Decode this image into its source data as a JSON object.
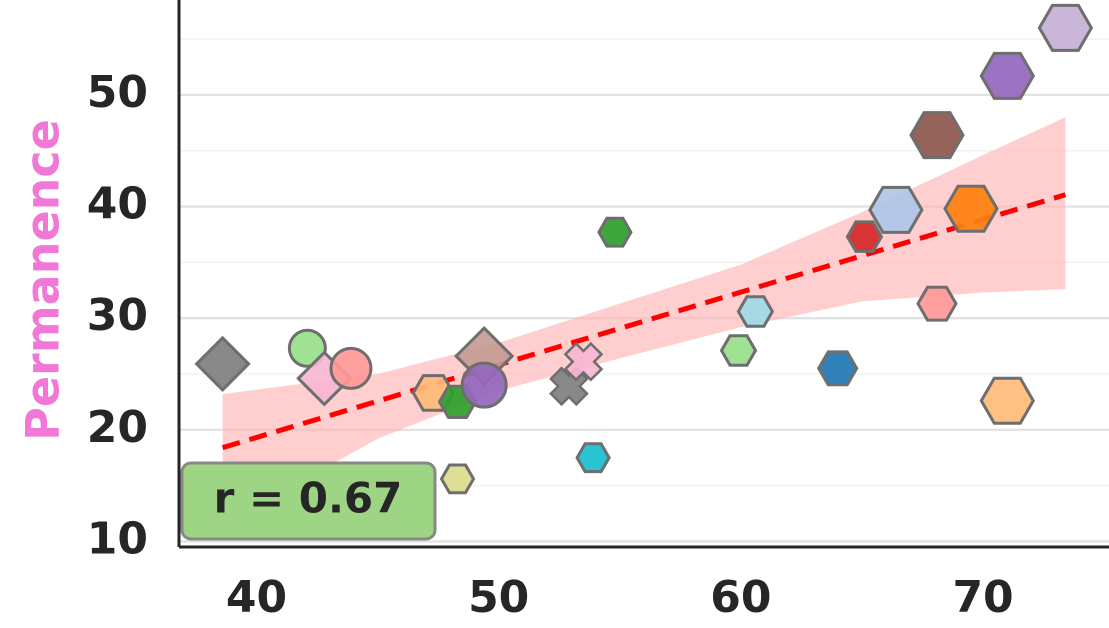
{
  "chart_data": {
    "type": "scatter",
    "title": "",
    "xlabel": "",
    "ylabel": "Permanence",
    "ylabel_color": "#f178d6",
    "xlim": [
      36.8,
      75.2
    ],
    "ylim": [
      9.5,
      58.5
    ],
    "x_ticks": [
      40,
      50,
      60,
      70
    ],
    "y_ticks": [
      10,
      20,
      30,
      40,
      50
    ],
    "grid": true,
    "annotation": "r = 0.67",
    "annotation_bg": "#9ed584",
    "regression": {
      "slope": 0.651,
      "intercept": -6.73,
      "x_range": [
        38.6,
        73.4
      ],
      "line_color": "#ff0000",
      "band_color": "#ffb6b6",
      "band_upper": [
        [
          38.6,
          23.2
        ],
        [
          45,
          25.0
        ],
        [
          50,
          27.8
        ],
        [
          55,
          31.3
        ],
        [
          60,
          34.8
        ],
        [
          65,
          39.5
        ],
        [
          70,
          44.6
        ],
        [
          73.4,
          48.0
        ]
      ],
      "band_lower": [
        [
          38.6,
          11.5
        ],
        [
          45,
          19.2
        ],
        [
          50,
          23.5
        ],
        [
          55,
          26.4
        ],
        [
          60,
          29.2
        ],
        [
          65,
          31.5
        ],
        [
          70,
          32.3
        ],
        [
          73.4,
          32.6
        ]
      ]
    },
    "points": [
      {
        "x": 38.6,
        "y": 25.9,
        "marker": "diamond",
        "size": 26,
        "color": "#7f7f7f"
      },
      {
        "x": 42.1,
        "y": 27.3,
        "marker": "circle",
        "size": 18,
        "color": "#98df8a"
      },
      {
        "x": 42.8,
        "y": 24.6,
        "marker": "diamond",
        "size": 26,
        "color": "#f7b6d2"
      },
      {
        "x": 43.9,
        "y": 25.5,
        "marker": "circle",
        "size": 20,
        "color": "#ff9896"
      },
      {
        "x": 47.3,
        "y": 23.3,
        "marker": "hexagon",
        "size": 20,
        "color": "#ffbb78"
      },
      {
        "x": 48.3,
        "y": 22.5,
        "marker": "hexagon",
        "size": 18,
        "color": "#2ca02c"
      },
      {
        "x": 48.3,
        "y": 15.6,
        "marker": "hexagon",
        "size": 16,
        "color": "#dbdb8d"
      },
      {
        "x": 49.4,
        "y": 26.6,
        "marker": "diamond",
        "size": 28,
        "color": "#c49c94"
      },
      {
        "x": 49.4,
        "y": 24.0,
        "marker": "circle",
        "size": 22,
        "color": "#9467bd"
      },
      {
        "x": 52.9,
        "y": 23.9,
        "marker": "x",
        "size": 18,
        "color": "#7f7f7f"
      },
      {
        "x": 53.5,
        "y": 26.1,
        "marker": "x",
        "size": 18,
        "color": "#f7b6d2"
      },
      {
        "x": 53.9,
        "y": 17.5,
        "marker": "hexagon",
        "size": 16,
        "color": "#17becf"
      },
      {
        "x": 54.8,
        "y": 37.7,
        "marker": "hexagon",
        "size": 16,
        "color": "#2ca02c"
      },
      {
        "x": 59.9,
        "y": 27.1,
        "marker": "hexagon",
        "size": 17,
        "color": "#98df8a"
      },
      {
        "x": 60.6,
        "y": 30.6,
        "marker": "hexagon",
        "size": 17,
        "color": "#9edae5"
      },
      {
        "x": 64.0,
        "y": 25.5,
        "marker": "hexagon",
        "size": 19,
        "color": "#1f77b4"
      },
      {
        "x": 65.1,
        "y": 37.3,
        "marker": "hexagon",
        "size": 17,
        "color": "#d62728"
      },
      {
        "x": 66.4,
        "y": 39.7,
        "marker": "hexagon",
        "size": 26,
        "color": "#aec7e8"
      },
      {
        "x": 68.1,
        "y": 31.3,
        "marker": "hexagon",
        "size": 19,
        "color": "#ff9896"
      },
      {
        "x": 68.1,
        "y": 46.4,
        "marker": "hexagon",
        "size": 26,
        "color": "#8c564b"
      },
      {
        "x": 69.5,
        "y": 39.8,
        "marker": "hexagon",
        "size": 26,
        "color": "#ff7f0e"
      },
      {
        "x": 71.0,
        "y": 22.6,
        "marker": "hexagon",
        "size": 26,
        "color": "#ffbb78"
      },
      {
        "x": 71.0,
        "y": 51.7,
        "marker": "hexagon",
        "size": 26,
        "color": "#9467bd"
      },
      {
        "x": 73.4,
        "y": 56.0,
        "marker": "hexagon",
        "size": 26,
        "color": "#c5b0d5"
      }
    ]
  }
}
